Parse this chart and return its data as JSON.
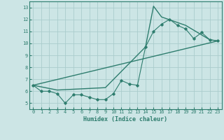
{
  "xlabel": "Humidex (Indice chaleur)",
  "xlim": [
    -0.5,
    23.5
  ],
  "ylim": [
    4.5,
    13.5
  ],
  "xticks": [
    0,
    1,
    2,
    3,
    4,
    5,
    6,
    7,
    8,
    9,
    10,
    11,
    12,
    13,
    14,
    15,
    16,
    17,
    18,
    19,
    20,
    21,
    22,
    23
  ],
  "yticks": [
    5,
    6,
    7,
    8,
    9,
    10,
    11,
    12,
    13
  ],
  "bg_color": "#cce5e5",
  "grid_color": "#aacccc",
  "line_color": "#2e7d6e",
  "line1_x": [
    0,
    1,
    2,
    3,
    4,
    5,
    6,
    7,
    8,
    9,
    10,
    11,
    12,
    13,
    14,
    15,
    16,
    17,
    18,
    19,
    20,
    21,
    22,
    23
  ],
  "line1_y": [
    6.5,
    6.0,
    6.0,
    5.8,
    5.0,
    5.7,
    5.7,
    5.5,
    5.3,
    5.3,
    5.8,
    6.9,
    6.6,
    6.5,
    9.7,
    11.0,
    11.6,
    12.0,
    11.5,
    11.2,
    10.4,
    10.9,
    10.3,
    10.2
  ],
  "line2_x": [
    0,
    3,
    9,
    14,
    15,
    16,
    19,
    22,
    23
  ],
  "line2_y": [
    6.5,
    6.1,
    6.3,
    9.7,
    13.1,
    12.2,
    11.5,
    10.3,
    10.2
  ],
  "line3_x": [
    0,
    23
  ],
  "line3_y": [
    6.5,
    10.2
  ]
}
